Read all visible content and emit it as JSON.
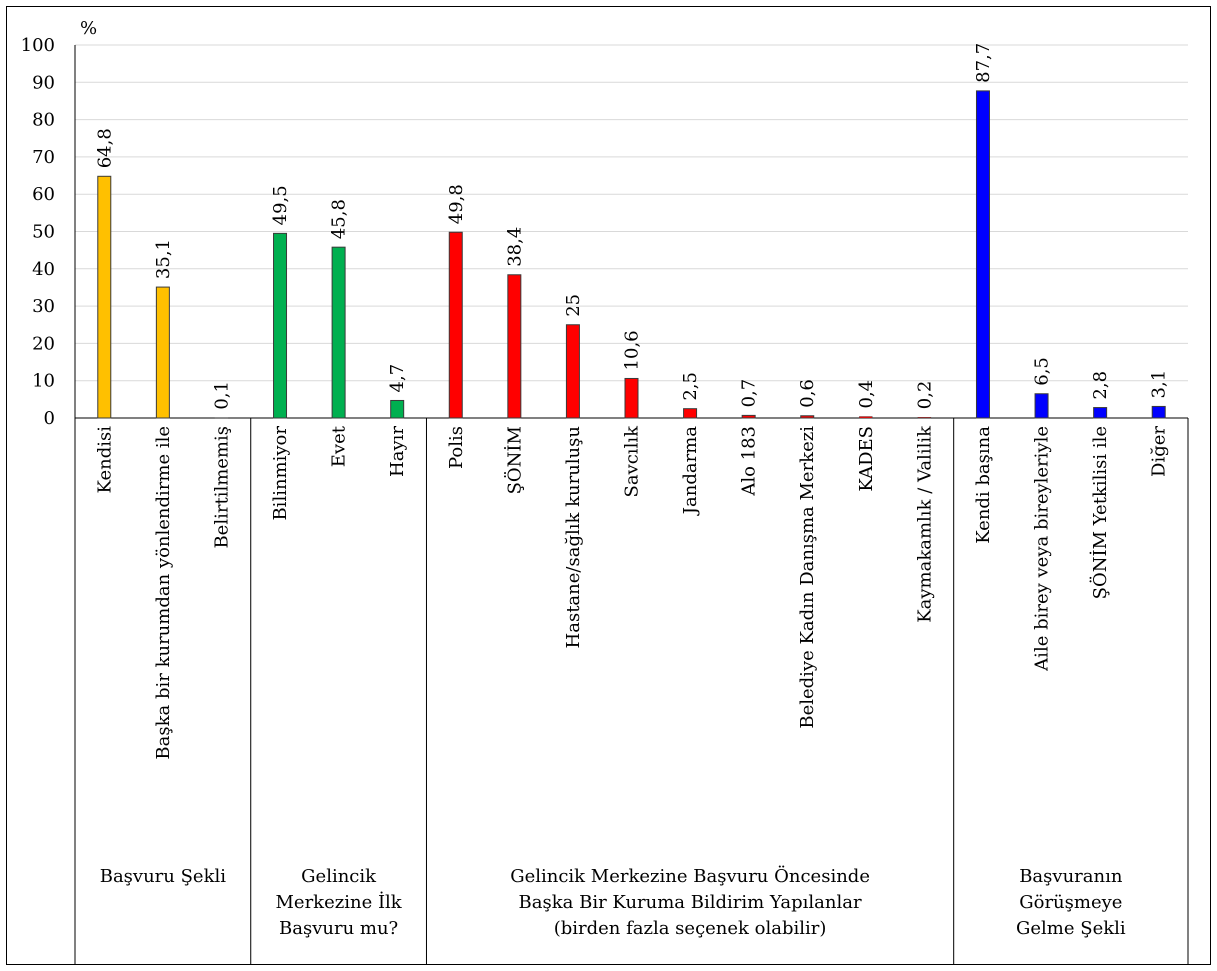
{
  "chart_data": {
    "type": "bar",
    "ylabel": "%",
    "ylim": [
      0,
      100
    ],
    "yticks": [
      0,
      10,
      20,
      30,
      40,
      50,
      60,
      70,
      80,
      90,
      100
    ],
    "grid": true,
    "legend": "none",
    "groups": [
      {
        "name": "Başvuru Şekli",
        "name_lines": [
          "Başvuru Şekli"
        ],
        "color": "#FFC000",
        "categories": [
          "Kendisi",
          "Başka bir kurumdan yönlendirme ile",
          "Belirtilmemiş"
        ],
        "values": [
          64.8,
          35.1,
          0.1
        ],
        "labels": [
          "64,8",
          "35,1",
          "0,1"
        ]
      },
      {
        "name": "Gelincik Merkezine İlk Başvuru mu?",
        "name_lines": [
          "Gelincik",
          "Merkezine İlk",
          "Başvuru mu?"
        ],
        "color": "#00B050",
        "categories": [
          "Bilinmiyor",
          "Evet",
          "Hayır"
        ],
        "values": [
          49.5,
          45.8,
          4.7
        ],
        "labels": [
          "49,5",
          "45,8",
          "4,7"
        ]
      },
      {
        "name": "Gelincik Merkezine Başvuru Öncesinde Başka Bir Kuruma Bildirim Yapılanlar (birden fazla seçenek olabilir)",
        "name_lines": [
          "Gelincik Merkezine Başvuru Öncesinde",
          "Başka Bir Kuruma Bildirim Yapılanlar",
          "(birden fazla seçenek olabilir)"
        ],
        "color": "#FF0000",
        "categories": [
          "Polis",
          "ŞÖNİM",
          "Hastane/sağlık kuruluşu",
          "Savcılık",
          "Jandarma",
          "Alo 183",
          "Belediye Kadın Danışma Merkezi",
          "KADES",
          "Kaymakamlık / Valilik"
        ],
        "values": [
          49.8,
          38.4,
          25,
          10.6,
          2.5,
          0.7,
          0.6,
          0.4,
          0.2
        ],
        "labels": [
          "49,8",
          "38,4",
          "25",
          "10,6",
          "2,5",
          "0,7",
          "0,6",
          "0,4",
          "0,2"
        ]
      },
      {
        "name": "Başvuranın Görüşmeye Gelme Şekli",
        "name_lines": [
          "Başvuranın",
          "Görüşmeye",
          "Gelme Şekli"
        ],
        "color": "#0000FF",
        "categories": [
          "Kendi başına",
          "Aile birey veya bireyleriyle",
          "ŞÖNİM Yetkilisi ile",
          "Diğer"
        ],
        "values": [
          87.7,
          6.5,
          2.8,
          3.1
        ],
        "labels": [
          "87,7",
          "6,5",
          "2,8",
          "3,1"
        ]
      }
    ]
  }
}
